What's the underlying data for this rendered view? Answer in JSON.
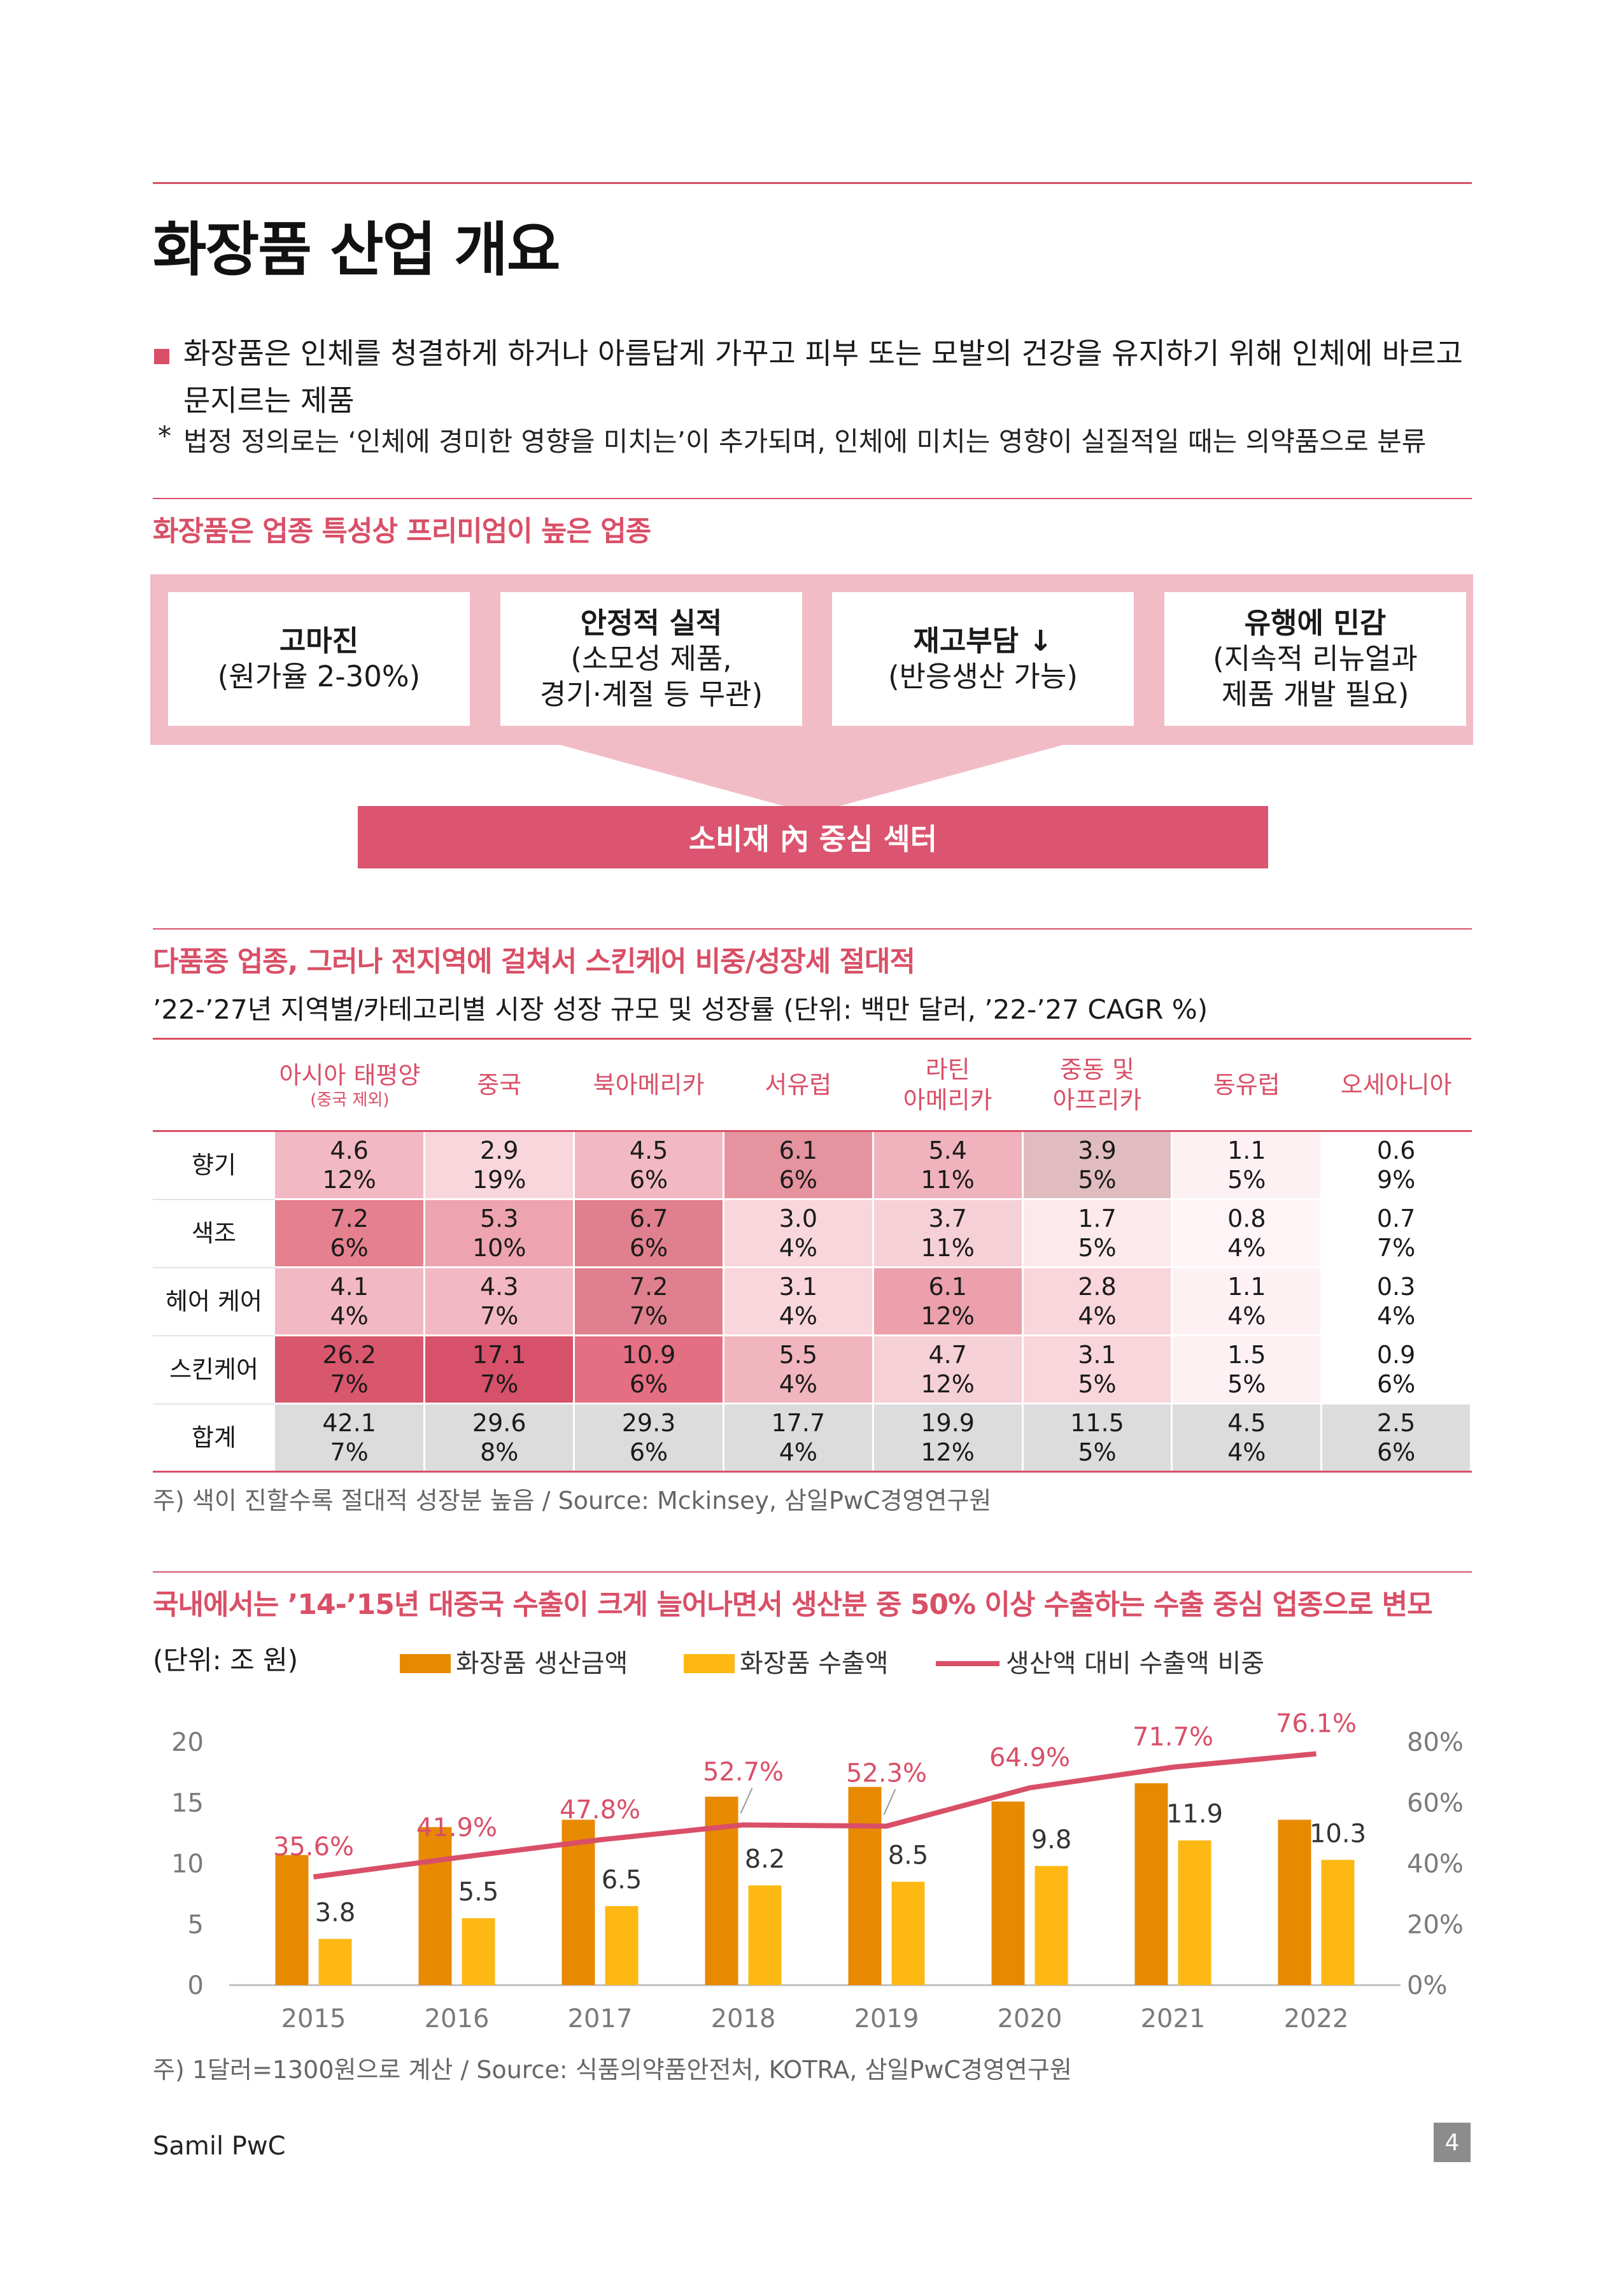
{
  "page": {
    "title": "화장품 산업 개요",
    "intro": "화장품은 인체를 청결하게 하거나 아름답게 가꾸고 피부 또는 모발의 건강을 유지하기 위해 인체에 바르고 문지르는 제품",
    "note_mark": "*",
    "note": "법정 정의로는 ‘인체에 경미한 영향을 미치는’이 추가되며, 인체에 미치는 영향이 실질적일 때는 의약품으로 분류"
  },
  "section1": {
    "title": "화장품은 업종 특성상 프리미엄이 높은 업종",
    "boxes": [
      {
        "title": "고마진",
        "desc": "(원가율 2-30%)"
      },
      {
        "title": "안정적 실적",
        "desc": "(소모성 제품,\n경기·계절 등 무관)"
      },
      {
        "title": "재고부담 ↓",
        "desc": "(반응생산 가능)"
      },
      {
        "title": "유행에 민감",
        "desc": "(지속적 리뉴얼과\n제품 개발 필요)"
      }
    ],
    "center_label": "소비재 內 중심 섹터"
  },
  "section2": {
    "title": "다품종 업종, 그러나 전지역에 걸쳐서 스킨케어 비중/성장세 절대적",
    "caption": "’22-’27년 지역별/카테고리별 시장 성장 규모 및 성장률 (단위: 백만 달러, ’22-’27 CAGR %)",
    "columns": [
      {
        "label": "아시아 태평양",
        "sub": "(중국 제외)"
      },
      {
        "label": "중국",
        "sub": ""
      },
      {
        "label": "북아메리카",
        "sub": ""
      },
      {
        "label": "서유럽",
        "sub": ""
      },
      {
        "label": "라틴\n아메리카",
        "sub": ""
      },
      {
        "label": "중동 및\n아프리카",
        "sub": ""
      },
      {
        "label": "동유럽",
        "sub": ""
      },
      {
        "label": "오세아니아",
        "sub": ""
      }
    ],
    "rows": [
      {
        "label": "향기",
        "cells": [
          [
            "4.6",
            "12%",
            "#f2b8c3"
          ],
          [
            "2.9",
            "19%",
            "#f8d6dc"
          ],
          [
            "4.5",
            "6%",
            "#f2b8c3"
          ],
          [
            "6.1",
            "6%",
            "#e4939f"
          ],
          [
            "5.4",
            "11%",
            "#f0b3bd"
          ],
          [
            "3.9",
            "5%",
            "#e0bcc1"
          ],
          [
            "1.1",
            "5%",
            "#fdf1f3"
          ],
          [
            "0.6",
            "9%",
            "#ffffff"
          ]
        ]
      },
      {
        "label": "색조",
        "cells": [
          [
            "7.2",
            "6%",
            "#e5818f"
          ],
          [
            "5.3",
            "10%",
            "#eea4b0"
          ],
          [
            "6.7",
            "6%",
            "#e07f8d"
          ],
          [
            "3.0",
            "4%",
            "#f8d6dc"
          ],
          [
            "3.7",
            "11%",
            "#f6d0d7"
          ],
          [
            "1.7",
            "5%",
            "#fce9ec"
          ],
          [
            "0.8",
            "4%",
            "#fff4f6"
          ],
          [
            "0.7",
            "7%",
            "#ffffff"
          ]
        ]
      },
      {
        "label": "헤어 케어",
        "cells": [
          [
            "4.1",
            "4%",
            "#f2b8c3"
          ],
          [
            "4.3",
            "7%",
            "#f2b8c3"
          ],
          [
            "7.2",
            "7%",
            "#e07f8d"
          ],
          [
            "3.1",
            "4%",
            "#f8d6dc"
          ],
          [
            "6.1",
            "12%",
            "#eba0ac"
          ],
          [
            "2.8",
            "4%",
            "#f8d6dc"
          ],
          [
            "1.1",
            "4%",
            "#fdf1f3"
          ],
          [
            "0.3",
            "4%",
            "#ffffff"
          ]
        ]
      },
      {
        "label": "스킨케어",
        "cells": [
          [
            "26.2",
            "7%",
            "#d9576d"
          ],
          [
            "17.1",
            "7%",
            "#d65169"
          ],
          [
            "10.9",
            "6%",
            "#e46f82"
          ],
          [
            "5.5",
            "4%",
            "#f1b5bf"
          ],
          [
            "4.7",
            "12%",
            "#f6d0d7"
          ],
          [
            "3.1",
            "5%",
            "#f8d6dc"
          ],
          [
            "1.5",
            "5%",
            "#fdf1f3"
          ],
          [
            "0.9",
            "6%",
            "#ffffff"
          ]
        ]
      },
      {
        "label": "합계",
        "cells": [
          [
            "42.1",
            "7%",
            ""
          ],
          [
            "29.6",
            "8%",
            ""
          ],
          [
            "29.3",
            "6%",
            ""
          ],
          [
            "17.7",
            "4%",
            ""
          ],
          [
            "19.9",
            "12%",
            ""
          ],
          [
            "11.5",
            "5%",
            ""
          ],
          [
            "4.5",
            "4%",
            ""
          ],
          [
            "2.5",
            "6%",
            ""
          ]
        ]
      }
    ],
    "note": "주) 색이 진할수록 절대적 성장분 높음 / Source: Mckinsey, 삼일PwC경영연구원"
  },
  "section3": {
    "title": "국내에서는 ’14-’15년 대중국 수출이 크게 늘어나면서 생산분 중 50% 이상 수출하는  수출 중심 업종으로 변모",
    "unit": "(단위: 조 원)",
    "note": "주) 1달러=1300원으로 계산 / Source: 식품의약품안전처, KOTRA, 삼일PwC경영연구원"
  },
  "chart_data": {
    "type": "bar",
    "categories": [
      "2015",
      "2016",
      "2017",
      "2018",
      "2019",
      "2020",
      "2021",
      "2022"
    ],
    "series": [
      {
        "name": "화장품 생산금액",
        "type": "bar",
        "axis": "left",
        "color": "#e88a00",
        "values": [
          10.7,
          13.0,
          13.6,
          15.5,
          16.3,
          15.1,
          16.6,
          13.6
        ]
      },
      {
        "name": "화장품 수출액",
        "type": "bar",
        "axis": "left",
        "color": "#fdb813",
        "values": [
          3.8,
          5.5,
          6.5,
          8.2,
          8.5,
          9.8,
          11.9,
          10.3
        ]
      },
      {
        "name": "생산액 대비 수출액 비중",
        "type": "line",
        "axis": "right",
        "color": "#d94f67",
        "values": [
          35.6,
          41.9,
          47.8,
          52.7,
          52.3,
          64.9,
          71.7,
          76.1
        ]
      }
    ],
    "export_labels": [
      "3.8",
      "5.5",
      "6.5",
      "8.2",
      "8.5",
      "9.8",
      "11.9",
      "10.3"
    ],
    "ratio_labels": [
      "35.6%",
      "41.9%",
      "47.8%",
      "52.7%",
      "52.3%",
      "64.9%",
      "71.7%",
      "76.1%"
    ],
    "ylim_left": [
      0,
      20
    ],
    "yticks_left": [
      "0",
      "5",
      "10",
      "15",
      "20"
    ],
    "ylim_right": [
      0,
      80
    ],
    "yticks_right": [
      "0%",
      "20%",
      "40%",
      "60%",
      "80%"
    ],
    "legend_position": "top",
    "grid": false
  },
  "footer": {
    "brand": "Samil PwC",
    "page_number": "4"
  }
}
